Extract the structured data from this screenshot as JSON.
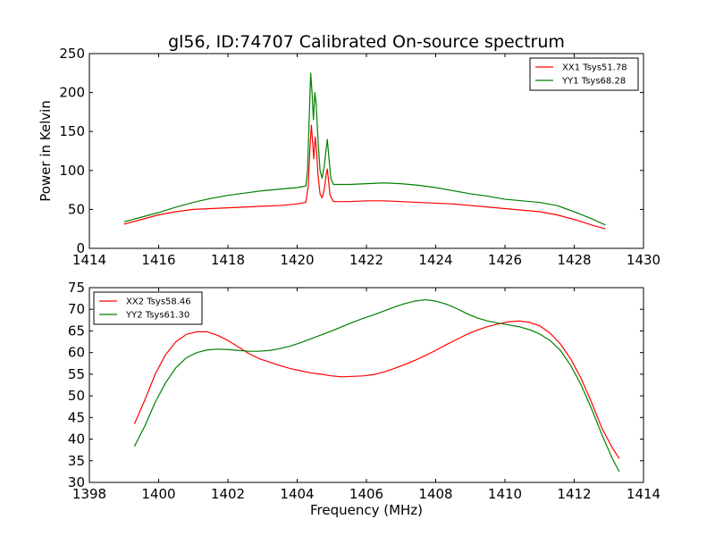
{
  "title": "gl56, ID:74707 Calibrated On-source spectrum",
  "chart_data": [
    {
      "type": "line",
      "title": "gl56, ID:74707 Calibrated On-source spectrum",
      "xlabel": "",
      "ylabel": "Power in Kelvin",
      "xlim": [
        1414,
        1430
      ],
      "ylim": [
        0,
        250
      ],
      "xticks": [
        1414,
        1416,
        1418,
        1420,
        1422,
        1424,
        1426,
        1428,
        1430
      ],
      "yticks": [
        0,
        50,
        100,
        150,
        200,
        250
      ],
      "grid": false,
      "legend_position": "top-right",
      "series": [
        {
          "name": "XX1 Tsys51.78",
          "color": "#ff0000",
          "points": [
            [
              1415.0,
              31
            ],
            [
              1415.5,
              37
            ],
            [
              1416.0,
              43
            ],
            [
              1416.5,
              47
            ],
            [
              1417.0,
              50
            ],
            [
              1417.5,
              51
            ],
            [
              1418.0,
              52
            ],
            [
              1418.5,
              53
            ],
            [
              1419.0,
              54
            ],
            [
              1419.5,
              55
            ],
            [
              1420.0,
              57
            ],
            [
              1420.25,
              59
            ],
            [
              1420.32,
              80
            ],
            [
              1420.37,
              130
            ],
            [
              1420.41,
              158
            ],
            [
              1420.44,
              140
            ],
            [
              1420.48,
              115
            ],
            [
              1420.52,
              143
            ],
            [
              1420.56,
              125
            ],
            [
              1420.6,
              95
            ],
            [
              1420.66,
              70
            ],
            [
              1420.72,
              65
            ],
            [
              1420.78,
              75
            ],
            [
              1420.84,
              95
            ],
            [
              1420.87,
              102
            ],
            [
              1420.9,
              90
            ],
            [
              1420.95,
              68
            ],
            [
              1421.05,
              60
            ],
            [
              1421.5,
              60
            ],
            [
              1422.0,
              61
            ],
            [
              1422.5,
              61
            ],
            [
              1423.0,
              60
            ],
            [
              1423.5,
              59
            ],
            [
              1424.0,
              58
            ],
            [
              1424.5,
              57
            ],
            [
              1425.0,
              55
            ],
            [
              1425.5,
              53
            ],
            [
              1426.0,
              51
            ],
            [
              1426.5,
              49
            ],
            [
              1427.0,
              47
            ],
            [
              1427.5,
              43
            ],
            [
              1428.0,
              37
            ],
            [
              1428.5,
              30
            ],
            [
              1428.9,
              25
            ]
          ]
        },
        {
          "name": "YY1 Tsys68.28",
          "color": "#008000",
          "points": [
            [
              1415.0,
              34
            ],
            [
              1415.5,
              40
            ],
            [
              1416.0,
              46
            ],
            [
              1416.5,
              53
            ],
            [
              1417.0,
              59
            ],
            [
              1417.5,
              64
            ],
            [
              1418.0,
              68
            ],
            [
              1418.5,
              71
            ],
            [
              1419.0,
              74
            ],
            [
              1419.5,
              76
            ],
            [
              1420.0,
              78
            ],
            [
              1420.25,
              80
            ],
            [
              1420.3,
              100
            ],
            [
              1420.35,
              170
            ],
            [
              1420.39,
              225
            ],
            [
              1420.43,
              200
            ],
            [
              1420.47,
              165
            ],
            [
              1420.51,
              200
            ],
            [
              1420.55,
              185
            ],
            [
              1420.6,
              140
            ],
            [
              1420.66,
              100
            ],
            [
              1420.72,
              90
            ],
            [
              1420.78,
              105
            ],
            [
              1420.83,
              125
            ],
            [
              1420.87,
              140
            ],
            [
              1420.91,
              120
            ],
            [
              1420.97,
              90
            ],
            [
              1421.05,
              82
            ],
            [
              1421.5,
              82
            ],
            [
              1422.0,
              83
            ],
            [
              1422.5,
              84
            ],
            [
              1423.0,
              83
            ],
            [
              1423.5,
              81
            ],
            [
              1424.0,
              78
            ],
            [
              1424.5,
              74
            ],
            [
              1425.0,
              70
            ],
            [
              1425.5,
              67
            ],
            [
              1426.0,
              63
            ],
            [
              1426.5,
              61
            ],
            [
              1427.0,
              59
            ],
            [
              1427.5,
              55
            ],
            [
              1428.0,
              47
            ],
            [
              1428.5,
              38
            ],
            [
              1428.9,
              30
            ]
          ]
        }
      ]
    },
    {
      "type": "line",
      "title": "",
      "xlabel": "Frequency (MHz)",
      "ylabel": "",
      "xlim": [
        1398,
        1414
      ],
      "ylim": [
        30,
        75
      ],
      "xticks": [
        1398,
        1400,
        1402,
        1404,
        1406,
        1408,
        1410,
        1412,
        1414
      ],
      "yticks": [
        30,
        35,
        40,
        45,
        50,
        55,
        60,
        65,
        70,
        75
      ],
      "grid": false,
      "legend_position": "top-left",
      "series": [
        {
          "name": "XX2 Tsys58.46",
          "color": "#ff0000",
          "points": [
            [
              1399.3,
              43.5
            ],
            [
              1399.6,
              49
            ],
            [
              1399.9,
              55
            ],
            [
              1400.2,
              59.5
            ],
            [
              1400.5,
              62.5
            ],
            [
              1400.8,
              64.2
            ],
            [
              1401.1,
              64.8
            ],
            [
              1401.4,
              64.8
            ],
            [
              1401.7,
              64
            ],
            [
              1402.0,
              62.8
            ],
            [
              1402.3,
              61.3
            ],
            [
              1402.6,
              59.8
            ],
            [
              1402.9,
              58.6
            ],
            [
              1403.2,
              57.8
            ],
            [
              1403.5,
              57
            ],
            [
              1403.8,
              56.3
            ],
            [
              1404.1,
              55.8
            ],
            [
              1404.4,
              55.3
            ],
            [
              1404.7,
              55
            ],
            [
              1405.0,
              54.6
            ],
            [
              1405.3,
              54.4
            ],
            [
              1405.6,
              54.5
            ],
            [
              1405.9,
              54.6
            ],
            [
              1406.2,
              54.9
            ],
            [
              1406.5,
              55.5
            ],
            [
              1406.8,
              56.3
            ],
            [
              1407.1,
              57.2
            ],
            [
              1407.4,
              58.2
            ],
            [
              1407.7,
              59.3
            ],
            [
              1408.0,
              60.5
            ],
            [
              1408.3,
              61.8
            ],
            [
              1408.6,
              63
            ],
            [
              1408.9,
              64.2
            ],
            [
              1409.2,
              65.2
            ],
            [
              1409.5,
              66
            ],
            [
              1409.8,
              66.6
            ],
            [
              1410.1,
              67.1
            ],
            [
              1410.4,
              67.3
            ],
            [
              1410.7,
              67
            ],
            [
              1411.0,
              66.2
            ],
            [
              1411.3,
              64.5
            ],
            [
              1411.6,
              62
            ],
            [
              1411.9,
              58.5
            ],
            [
              1412.2,
              54
            ],
            [
              1412.5,
              48.5
            ],
            [
              1412.8,
              42.5
            ],
            [
              1413.1,
              38
            ],
            [
              1413.3,
              35.5
            ]
          ]
        },
        {
          "name": "YY2 Tsys61.30",
          "color": "#008000",
          "points": [
            [
              1399.3,
              38.3
            ],
            [
              1399.6,
              43
            ],
            [
              1399.9,
              48.5
            ],
            [
              1400.2,
              53
            ],
            [
              1400.5,
              56.5
            ],
            [
              1400.8,
              58.8
            ],
            [
              1401.1,
              60
            ],
            [
              1401.4,
              60.6
            ],
            [
              1401.7,
              60.8
            ],
            [
              1402.0,
              60.7
            ],
            [
              1402.3,
              60.5
            ],
            [
              1402.6,
              60.3
            ],
            [
              1402.9,
              60.3
            ],
            [
              1403.2,
              60.5
            ],
            [
              1403.5,
              60.9
            ],
            [
              1403.8,
              61.5
            ],
            [
              1404.1,
              62.3
            ],
            [
              1404.4,
              63.2
            ],
            [
              1404.7,
              64.1
            ],
            [
              1405.0,
              65
            ],
            [
              1405.3,
              66
            ],
            [
              1405.6,
              67
            ],
            [
              1405.9,
              67.9
            ],
            [
              1406.2,
              68.7
            ],
            [
              1406.5,
              69.6
            ],
            [
              1406.8,
              70.5
            ],
            [
              1407.1,
              71.3
            ],
            [
              1407.4,
              71.9
            ],
            [
              1407.7,
              72.2
            ],
            [
              1408.0,
              71.9
            ],
            [
              1408.3,
              71.2
            ],
            [
              1408.6,
              70.2
            ],
            [
              1408.9,
              69
            ],
            [
              1409.2,
              68
            ],
            [
              1409.5,
              67.3
            ],
            [
              1409.8,
              66.8
            ],
            [
              1410.1,
              66.4
            ],
            [
              1410.4,
              66
            ],
            [
              1410.7,
              65.3
            ],
            [
              1411.0,
              64.3
            ],
            [
              1411.3,
              62.8
            ],
            [
              1411.6,
              60.5
            ],
            [
              1411.9,
              57
            ],
            [
              1412.2,
              52.5
            ],
            [
              1412.5,
              47
            ],
            [
              1412.8,
              41
            ],
            [
              1413.1,
              35.5
            ],
            [
              1413.3,
              32.5
            ]
          ]
        }
      ]
    }
  ]
}
